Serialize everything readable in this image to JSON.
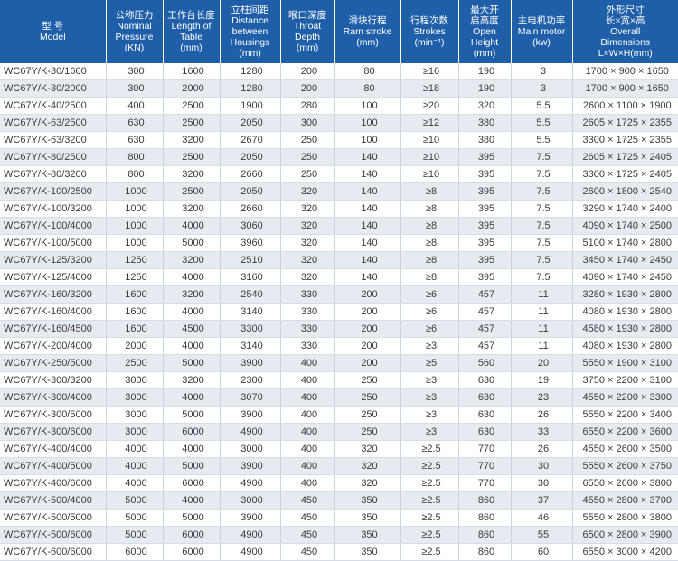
{
  "table": {
    "header": [
      [
        "型 号",
        "Model"
      ],
      [
        "公称压力",
        "Nominal",
        "Pressure",
        "(KN)"
      ],
      [
        "工作台长度",
        "Length of",
        "Table",
        "(mm)"
      ],
      [
        "立柱间距",
        "Distance",
        "between",
        "Housings",
        "(mm)"
      ],
      [
        "喉口深度",
        "Throat",
        "Depth",
        "(mm)"
      ],
      [
        "滑块行程",
        "Ram stroke",
        "(mm)"
      ],
      [
        "行程次数",
        "Strokes",
        "(min⁻¹)"
      ],
      [
        "最大开",
        "启高度",
        "Open",
        "Height",
        "(mm)"
      ],
      [
        "主电机功率",
        "Main motor",
        "(kw)"
      ],
      [
        "外形尺寸",
        "长×宽×高",
        "Overall",
        "Dimensions",
        "L×W×H(mm)"
      ]
    ],
    "rows": [
      [
        "WC67Y/K-30/1600",
        300,
        1600,
        1280,
        200,
        80,
        "≥16",
        190,
        3,
        "1700 × 900 × 1650"
      ],
      [
        "WC67Y/K-30/2000",
        300,
        2000,
        1280,
        200,
        80,
        "≥18",
        190,
        3,
        "1700 × 900 × 1650"
      ],
      [
        "WC67Y/K-40/2500",
        400,
        2500,
        1900,
        280,
        100,
        "≥20",
        320,
        5.5,
        "2600 × 1100 × 1900"
      ],
      [
        "WC67Y/K-63/2500",
        630,
        2500,
        2050,
        300,
        100,
        "≥12",
        380,
        5.5,
        "2605 × 1725 × 2355"
      ],
      [
        "WC67Y/K-63/3200",
        630,
        3200,
        2670,
        250,
        100,
        "≥10",
        380,
        5.5,
        "3300 × 1725 × 2355"
      ],
      [
        "WC67Y/K-80/2500",
        800,
        2500,
        2050,
        250,
        140,
        "≥10",
        395,
        7.5,
        "2605 × 1725 × 2405"
      ],
      [
        "WC67Y/K-80/3200",
        800,
        3200,
        2660,
        250,
        140,
        "≥10",
        395,
        7.5,
        "3300 × 1725 × 2405"
      ],
      [
        "WC67Y/K-100/2500",
        1000,
        2500,
        2050,
        320,
        140,
        "≥8",
        395,
        7.5,
        "2600 × 1800 × 2540"
      ],
      [
        "WC67Y/K-100/3200",
        1000,
        3200,
        2660,
        320,
        140,
        "≥8",
        395,
        7.5,
        "3290 × 1740 × 2400"
      ],
      [
        "WC67Y/K-100/4000",
        1000,
        4000,
        3060,
        320,
        140,
        "≥8",
        395,
        7.5,
        "4090 × 1740 × 2500"
      ],
      [
        "WC67Y/K-100/5000",
        1000,
        5000,
        3960,
        320,
        140,
        "≥8",
        395,
        7.5,
        "5100 × 1740 × 2800"
      ],
      [
        "WC67Y/K-125/3200",
        1250,
        3200,
        2510,
        320,
        140,
        "≥8",
        395,
        7.5,
        "3450 × 1740 × 2450"
      ],
      [
        "WC67Y/K-125/4000",
        1250,
        4000,
        3160,
        320,
        140,
        "≥8",
        395,
        7.5,
        "4090 × 1740 × 2450"
      ],
      [
        "WC67Y/K-160/3200",
        1600,
        3200,
        2540,
        330,
        200,
        "≥6",
        457,
        11,
        "3280 × 1930 × 2800"
      ],
      [
        "WC67Y/K-160/4000",
        1600,
        4000,
        3140,
        330,
        200,
        "≥6",
        457,
        11,
        "4080 × 1930 × 2800"
      ],
      [
        "WC67Y/K-160/4500",
        1600,
        4500,
        3300,
        330,
        200,
        "≥6",
        457,
        11,
        "4580 × 1930 × 2800"
      ],
      [
        "WC67Y/K-200/4000",
        2000,
        4000,
        3140,
        330,
        200,
        "≥3",
        457,
        11,
        "4080 × 1930 × 2800"
      ],
      [
        "WC67Y/K-250/5000",
        2500,
        5000,
        3900,
        400,
        200,
        "≥5",
        560,
        20,
        "5550 × 1900 × 3100"
      ],
      [
        "WC67Y/K-300/3200",
        3000,
        3200,
        2300,
        400,
        250,
        "≥3",
        630,
        19,
        "3750 × 2200 × 3100"
      ],
      [
        "WC67Y/K-300/4000",
        3000,
        4000,
        3070,
        400,
        250,
        "≥3",
        630,
        23,
        "4550 × 2200 × 3300"
      ],
      [
        "WC67Y/K-300/5000",
        3000,
        5000,
        3900,
        400,
        250,
        "≥3",
        630,
        26,
        "5550 × 2200 × 3400"
      ],
      [
        "WC67Y/K-300/6000",
        3000,
        6000,
        4900,
        400,
        250,
        "≥3",
        630,
        33,
        "6550 × 2200 × 3600"
      ],
      [
        "WC67Y/K-400/4000",
        4000,
        4000,
        3000,
        400,
        320,
        "≥2.5",
        770,
        26,
        "4550 × 2600 × 3500"
      ],
      [
        "WC67Y/K-400/5000",
        4000,
        5000,
        3900,
        400,
        320,
        "≥2.5",
        770,
        30,
        "5550 × 2600 × 3750"
      ],
      [
        "WC67Y/K-400/6000",
        4000,
        6000,
        4900,
        400,
        320,
        "≥2.5",
        770,
        30,
        "6550 × 2600 × 3800"
      ],
      [
        "WC67Y/K-500/4000",
        5000,
        4000,
        3000,
        450,
        350,
        "≥2.5",
        860,
        37,
        "4550 × 2800 × 3700"
      ],
      [
        "WC67Y/K-500/5000",
        5000,
        5000,
        3900,
        450,
        350,
        "≥2.5",
        860,
        46,
        "5550 × 2800 × 3800"
      ],
      [
        "WC67Y/K-500/6000",
        5000,
        6000,
        4900,
        450,
        350,
        "≥2.5",
        860,
        55,
        "6500 × 2800 × 3900"
      ],
      [
        "WC67Y/K-600/6000",
        6000,
        6000,
        4900,
        450,
        350,
        "≥2.5",
        860,
        60,
        "6550 × 3000 × 4200"
      ]
    ]
  }
}
